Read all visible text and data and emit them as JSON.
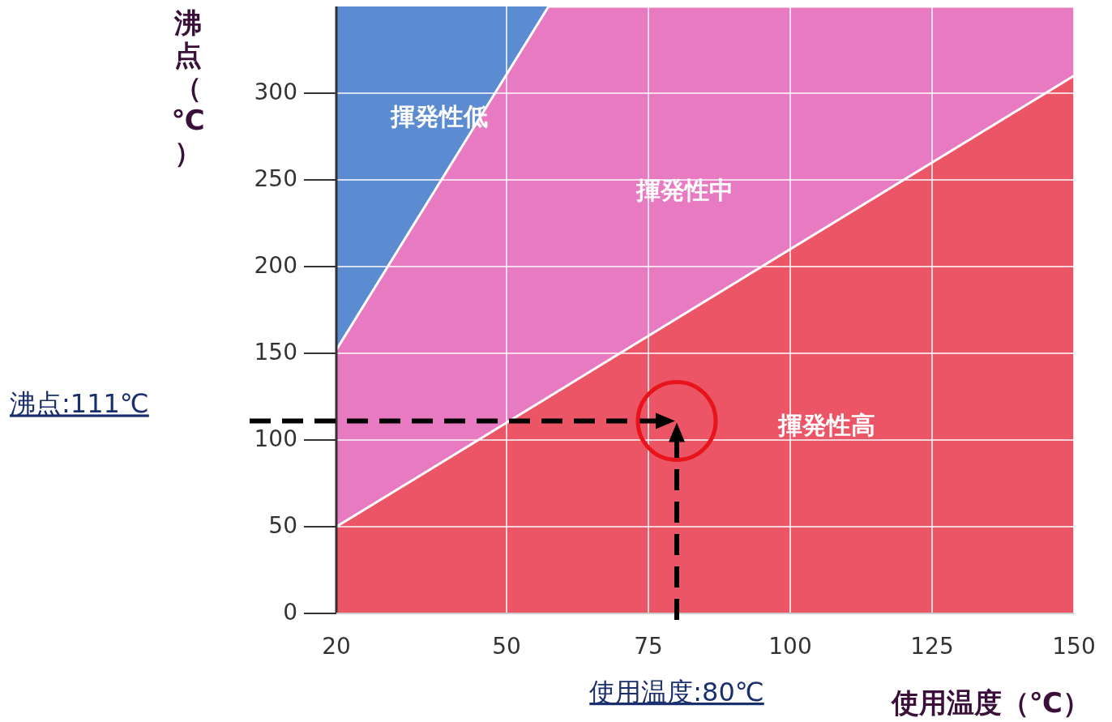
{
  "chart_data": {
    "type": "area",
    "stacked": true,
    "xlabel": "使用温度（℃）",
    "ylabel": "沸点（℃）",
    "x": [
      20,
      57.4,
      150
    ],
    "series": [
      {
        "name": "揮発性高",
        "color": "#ec5566",
        "values": [
          50,
          124.8,
          310
        ]
      },
      {
        "name": "揮発性中",
        "color": "#e77ac0",
        "values": [
          102,
          225.2,
          40
        ]
      },
      {
        "name": "揮発性低",
        "color": "#5b8bd0",
        "values": [
          198,
          0,
          0
        ]
      },
      {
        "type": "scatter",
        "color": "#e8141b",
        "x": [
          80
        ],
        "values": [
          111
        ]
      }
    ],
    "xlim": [
      20,
      150
    ],
    "ylim": [
      0,
      350
    ],
    "xticks": [
      20,
      50,
      75,
      100,
      125,
      150
    ],
    "yticks": [
      0,
      50,
      100,
      150,
      200,
      250,
      300
    ],
    "grid": true,
    "annotations": [
      "沸点:111℃",
      "使用温度:80℃"
    ]
  }
}
